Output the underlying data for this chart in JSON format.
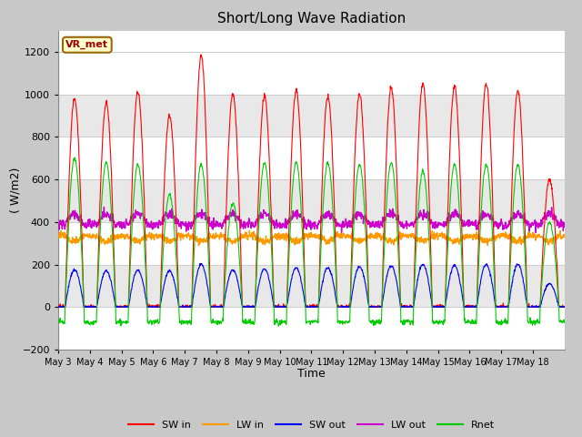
{
  "title": "Short/Long Wave Radiation",
  "xlabel": "Time",
  "ylabel": "( W/m2)",
  "ylim": [
    -200,
    1300
  ],
  "yticks": [
    -200,
    0,
    200,
    400,
    600,
    800,
    1000,
    1200
  ],
  "x_labels": [
    "May 3",
    "May 4",
    "May 5",
    "May 6",
    "May 7",
    "May 8",
    "May 9",
    "May 10",
    "May 11",
    "May 12",
    "May 13",
    "May 14",
    "May 15",
    "May 16",
    "May 17",
    "May 18"
  ],
  "colors": {
    "SW_in": "#ff0000",
    "LW_in": "#ff9900",
    "SW_out": "#0000ee",
    "LW_out": "#cc00cc",
    "Rnet": "#00cc00"
  },
  "legend_labels": [
    "SW in",
    "LW in",
    "SW out",
    "LW out",
    "Rnet"
  ],
  "annotation_text": "VR_met",
  "annotation_color": "#990000",
  "annotation_bg": "#ffffcc",
  "annotation_border": "#996600",
  "fig_bg": "#c8c8c8",
  "plot_bg": "#ffffff",
  "band_color": "#e0e0e0",
  "n_days": 16,
  "SW_in_peaks": [
    980,
    960,
    1010,
    900,
    1180,
    1000,
    990,
    1020,
    990,
    1000,
    1030,
    1050,
    1040,
    1050,
    1020,
    600
  ],
  "Rnet_peaks": [
    700,
    680,
    670,
    530,
    670,
    490,
    680,
    680,
    680,
    670,
    680,
    640,
    670,
    670,
    670,
    400
  ],
  "SW_out_peaks": [
    175,
    170,
    175,
    170,
    200,
    175,
    180,
    185,
    185,
    190,
    195,
    200,
    195,
    200,
    200,
    110
  ],
  "LW_in_base": 335,
  "LW_out_base": 388
}
